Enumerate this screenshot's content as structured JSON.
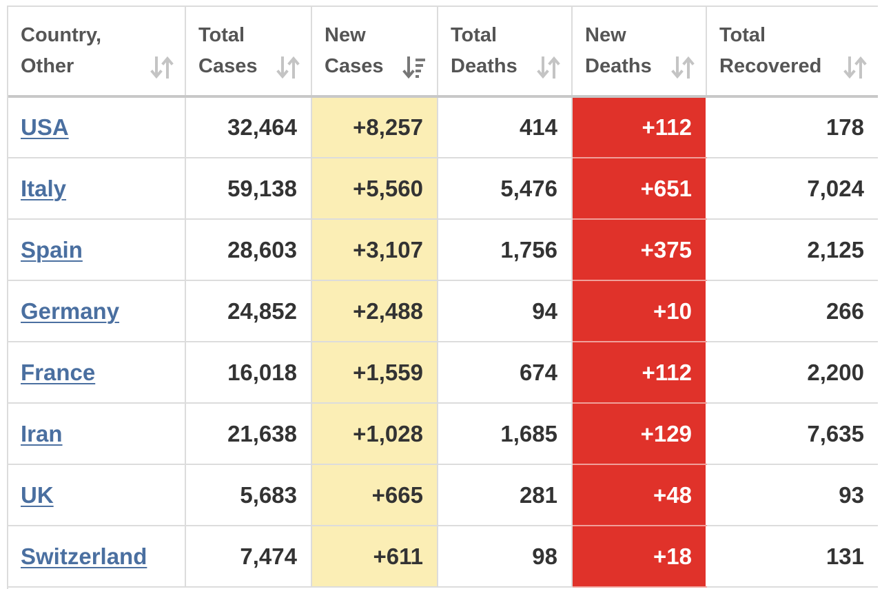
{
  "table": {
    "headers": [
      {
        "label": "Country,\nOther",
        "sort": "neutral"
      },
      {
        "label": "Total\nCases",
        "sort": "neutral"
      },
      {
        "label": "New\nCases",
        "sort": "descending"
      },
      {
        "label": "Total\nDeaths",
        "sort": "neutral"
      },
      {
        "label": "New\nDeaths",
        "sort": "neutral"
      },
      {
        "label": "Total\nRecovered",
        "sort": "neutral"
      }
    ],
    "rows": [
      {
        "country": "USA",
        "total_cases": "32,464",
        "new_cases": "+8,257",
        "total_deaths": "414",
        "new_deaths": "+112",
        "total_recovered": "178"
      },
      {
        "country": "Italy",
        "total_cases": "59,138",
        "new_cases": "+5,560",
        "total_deaths": "5,476",
        "new_deaths": "+651",
        "total_recovered": "7,024"
      },
      {
        "country": "Spain",
        "total_cases": "28,603",
        "new_cases": "+3,107",
        "total_deaths": "1,756",
        "new_deaths": "+375",
        "total_recovered": "2,125"
      },
      {
        "country": "Germany",
        "total_cases": "24,852",
        "new_cases": "+2,488",
        "total_deaths": "94",
        "new_deaths": "+10",
        "total_recovered": "266"
      },
      {
        "country": "France",
        "total_cases": "16,018",
        "new_cases": "+1,559",
        "total_deaths": "674",
        "new_deaths": "+112",
        "total_recovered": "2,200"
      },
      {
        "country": "Iran",
        "total_cases": "21,638",
        "new_cases": "+1,028",
        "total_deaths": "1,685",
        "new_deaths": "+129",
        "total_recovered": "7,635"
      },
      {
        "country": "UK",
        "total_cases": "5,683",
        "new_cases": "+665",
        "total_deaths": "281",
        "new_deaths": "+48",
        "total_recovered": "93"
      },
      {
        "country": "Switzerland",
        "total_cases": "7,474",
        "new_cases": "+611",
        "total_deaths": "98",
        "new_deaths": "+18",
        "total_recovered": "131"
      }
    ]
  },
  "colors": {
    "new_cases_bg": "#fbeeb5",
    "new_deaths_bg": "#e0322a",
    "link": "#4a6fa0",
    "sort_icon": "#c4c4c4",
    "sort_icon_active": "#777777"
  },
  "icons": {
    "sort_neutral": "sort-arrows-icon",
    "sort_descending": "sort-descending-icon"
  }
}
